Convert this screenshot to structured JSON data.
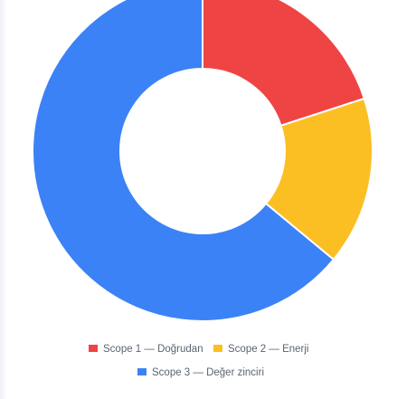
{
  "chart_data": {
    "type": "pie",
    "variant": "donut",
    "title": "",
    "categories": [
      "Scope 1 — Doğrudan",
      "Scope 2 — Enerji",
      "Scope 3 — Değer zinciri"
    ],
    "values": [
      20,
      16,
      64
    ],
    "unit": "percent (estimated share)",
    "colors": [
      "#ef4444",
      "#fbbf24",
      "#3b82f6"
    ],
    "start_angle_deg": 0,
    "direction": "clockwise",
    "legend": {
      "position": "bottom",
      "entries": [
        {
          "label": "Scope 1 — Doğrudan",
          "color": "#ef4444"
        },
        {
          "label": "Scope 2 — Enerji",
          "color": "#fbbf24"
        },
        {
          "label": "Scope 3 — Değer zinciri",
          "color": "#3b82f6"
        }
      ]
    }
  }
}
